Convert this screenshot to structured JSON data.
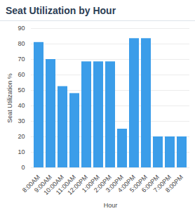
{
  "chart_data": {
    "type": "bar",
    "title": "Seat Utilization by Hour",
    "x_label": "Hour",
    "y_label": "Seat Utilization %",
    "categories": [
      "8:00AM",
      "9:00AM",
      "10:00AM",
      "11:00AM",
      "12:00PM",
      "1:00PM",
      "2:00PM",
      "3:00PM",
      "4:00PM",
      "5:00PM",
      "6:00PM",
      "7:00PM",
      "8:00PM"
    ],
    "values": [
      81,
      70,
      52.5,
      48,
      68.5,
      68.5,
      68.5,
      25,
      83.5,
      83.5,
      20,
      20,
      20
    ],
    "color": "#3b9de9",
    "ylim": [
      0,
      90
    ],
    "yticks": [
      0,
      10,
      20,
      30,
      40,
      50,
      60,
      70,
      80,
      90
    ],
    "grid": true
  }
}
